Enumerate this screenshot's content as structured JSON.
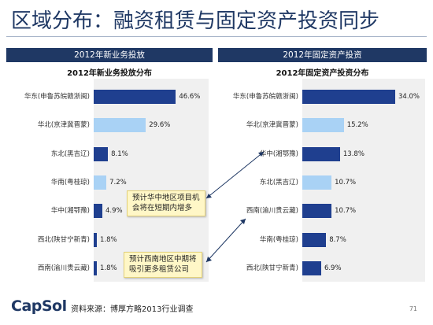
{
  "slide": {
    "title": "区域分布：融资租赁与固定资产投资同步",
    "left_header": "2012年新业务投放",
    "right_header": "2012年固定资产投资",
    "callout_1": [
      "预计华中地区项目机",
      "会将在短期内增多"
    ],
    "callout_2": [
      "预计西南地区中期将",
      "吸引更多租赁公司"
    ],
    "logo_text": "CapSol",
    "source": "资料来源：博厚方略2013行业调查",
    "page_number": "71"
  },
  "colors": {
    "dark_bar": "#1f3f8f",
    "light_bar": "#a9d2f5",
    "header_bg": "#1f3864"
  },
  "chart_data": [
    {
      "type": "bar",
      "orientation": "horizontal",
      "title": "2012年新业务投放分布",
      "categories": [
        "华东(申鲁苏皖赣浙闽)",
        "华北(京津冀晋蒙)",
        "东北(黑吉辽)",
        "华南(粤桂琼)",
        "华中(湘鄂豫)",
        "西北(陕甘宁新青)",
        "西南(渝川贵云藏)"
      ],
      "values": [
        46.6,
        29.6,
        8.1,
        7.2,
        4.9,
        1.8,
        1.8
      ],
      "value_labels": [
        "46.6%",
        "29.6%",
        "8.1%",
        "7.2%",
        "4.9%",
        "1.8%",
        "1.8%"
      ],
      "bar_colors": [
        "dark",
        "light",
        "dark",
        "light",
        "dark",
        "dark",
        "dark"
      ],
      "xlim": [
        0,
        50
      ]
    },
    {
      "type": "bar",
      "orientation": "horizontal",
      "title": "2012年固定资产投资分布",
      "categories": [
        "华东(申鲁苏皖赣浙闽)",
        "华北(京津冀晋蒙)",
        "华中(湘鄂豫)",
        "东北(黑吉辽)",
        "西南(渝川贵云藏)",
        "华南(粤桂琼)",
        "西北(陕甘宁新青)"
      ],
      "values": [
        34.0,
        15.2,
        13.8,
        10.7,
        10.7,
        8.7,
        6.9
      ],
      "value_labels": [
        "34.0%",
        "15.2%",
        "13.8%",
        "10.7%",
        "10.7%",
        "8.7%",
        "6.9%"
      ],
      "bar_colors": [
        "dark",
        "light",
        "dark",
        "light",
        "dark",
        "dark",
        "dark"
      ],
      "xlim": [
        0,
        34
      ]
    }
  ]
}
